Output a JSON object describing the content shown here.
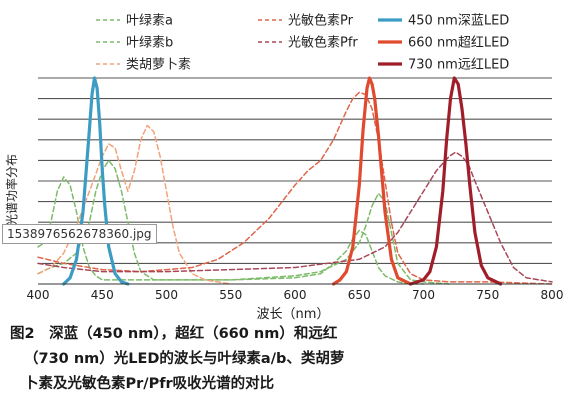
{
  "filename_tag": "1538976562678360.jpg",
  "caption": {
    "line1": "图2　深蓝（450 nm），超红（660 nm）和远红",
    "line2": "（730 nm）光LED的波长与叶绿素a/b、类胡萝",
    "line3": "卜素及光敏色素Pr/Pfr吸收光谱的对比"
  },
  "colors": {
    "chl_a": "#7dbb6b",
    "chl_b": "#7dbb6b",
    "carotenoid": "#f0a37a",
    "pr": "#e0654a",
    "pfr": "#a8475a",
    "led450": "#3d9cc4",
    "led660": "#e04a2e",
    "led730": "#a01e2a",
    "gridline": "#555555"
  },
  "chart_data": {
    "type": "line",
    "title": "",
    "xlabel": "波长（nm）",
    "ylabel": "光谱功率分布",
    "xlim": [
      400,
      800
    ],
    "ylim": [
      0,
      1
    ],
    "x_ticks": [
      400,
      450,
      500,
      550,
      600,
      650,
      700,
      750,
      800
    ],
    "grid": "horizontal",
    "legend_position": "top",
    "series": [
      {
        "key": "chl_a",
        "name": "叶绿素a",
        "style": "dashed",
        "x": [
          400,
          405,
          410,
          415,
          420,
          425,
          430,
          435,
          440,
          445,
          450,
          455,
          460,
          465,
          470,
          480,
          500,
          550,
          600,
          620,
          640,
          650,
          655,
          660,
          665,
          670,
          675,
          680,
          690,
          700,
          720
        ],
        "y": [
          0.18,
          0.2,
          0.3,
          0.45,
          0.52,
          0.48,
          0.35,
          0.18,
          0.08,
          0.04,
          0.02,
          0.02,
          0.02,
          0.02,
          0.02,
          0.02,
          0.02,
          0.02,
          0.04,
          0.06,
          0.12,
          0.2,
          0.28,
          0.38,
          0.44,
          0.4,
          0.25,
          0.1,
          0.02,
          0.01,
          0.0
        ]
      },
      {
        "key": "chl_b",
        "name": "叶绿素b",
        "style": "dashed",
        "x": [
          400,
          410,
          420,
          430,
          440,
          445,
          450,
          455,
          460,
          465,
          470,
          475,
          480,
          490,
          500,
          550,
          600,
          620,
          630,
          640,
          645,
          650,
          655,
          660,
          665,
          670,
          680,
          690,
          700
        ],
        "y": [
          0.05,
          0.08,
          0.1,
          0.15,
          0.3,
          0.45,
          0.55,
          0.6,
          0.56,
          0.45,
          0.3,
          0.15,
          0.06,
          0.02,
          0.02,
          0.02,
          0.03,
          0.05,
          0.1,
          0.16,
          0.22,
          0.26,
          0.24,
          0.16,
          0.08,
          0.04,
          0.01,
          0.0,
          0.0
        ]
      },
      {
        "key": "carotenoid",
        "name": "类胡萝卜素",
        "style": "dashed",
        "x": [
          400,
          410,
          420,
          430,
          440,
          450,
          455,
          460,
          465,
          470,
          475,
          480,
          485,
          490,
          495,
          500,
          505,
          510,
          520,
          530,
          550
        ],
        "y": [
          0.05,
          0.08,
          0.15,
          0.28,
          0.45,
          0.62,
          0.68,
          0.66,
          0.55,
          0.45,
          0.55,
          0.7,
          0.77,
          0.74,
          0.62,
          0.45,
          0.28,
          0.15,
          0.05,
          0.02,
          0.0
        ]
      },
      {
        "key": "pr",
        "name": "光敏色素Pr",
        "style": "dashed",
        "x": [
          400,
          420,
          450,
          480,
          500,
          520,
          540,
          560,
          580,
          600,
          610,
          620,
          630,
          640,
          645,
          650,
          655,
          660,
          665,
          670,
          675,
          680,
          690,
          700,
          720,
          750,
          800
        ],
        "y": [
          0.13,
          0.1,
          0.07,
          0.06,
          0.07,
          0.08,
          0.12,
          0.2,
          0.32,
          0.48,
          0.55,
          0.6,
          0.7,
          0.84,
          0.9,
          0.93,
          0.92,
          0.85,
          0.7,
          0.5,
          0.3,
          0.15,
          0.05,
          0.02,
          0.01,
          0.01,
          0.0
        ]
      },
      {
        "key": "pfr",
        "name": "光敏色素Pfr",
        "style": "dashed",
        "x": [
          400,
          420,
          450,
          500,
          550,
          600,
          650,
          670,
          680,
          690,
          700,
          710,
          720,
          725,
          730,
          735,
          740,
          750,
          760,
          770,
          780,
          800
        ],
        "y": [
          0.1,
          0.08,
          0.06,
          0.06,
          0.07,
          0.08,
          0.12,
          0.18,
          0.25,
          0.35,
          0.45,
          0.55,
          0.62,
          0.64,
          0.62,
          0.58,
          0.5,
          0.35,
          0.2,
          0.08,
          0.03,
          0.01
        ]
      },
      {
        "key": "led450",
        "name": "450 nm深蓝LED",
        "style": "solid",
        "x": [
          420,
          425,
          430,
          435,
          440,
          442,
          444,
          446,
          448,
          450,
          452,
          455,
          460,
          465,
          470
        ],
        "y": [
          0.0,
          0.03,
          0.12,
          0.35,
          0.75,
          0.92,
          1.0,
          0.95,
          0.78,
          0.55,
          0.38,
          0.18,
          0.05,
          0.01,
          0.0
        ]
      },
      {
        "key": "led660",
        "name": "660 nm超红LED",
        "style": "solid",
        "x": [
          630,
          635,
          640,
          645,
          650,
          653,
          656,
          658,
          660,
          662,
          665,
          668,
          670,
          675,
          680,
          690
        ],
        "y": [
          0.0,
          0.02,
          0.06,
          0.18,
          0.48,
          0.75,
          0.95,
          1.0,
          0.97,
          0.9,
          0.72,
          0.5,
          0.35,
          0.12,
          0.03,
          0.0
        ]
      },
      {
        "key": "led730",
        "name": "730 nm远红LED",
        "style": "solid",
        "x": [
          690,
          700,
          705,
          710,
          715,
          718,
          721,
          724,
          727,
          730,
          733,
          736,
          740,
          745,
          750,
          760
        ],
        "y": [
          0.0,
          0.02,
          0.06,
          0.18,
          0.45,
          0.7,
          0.9,
          1.0,
          0.97,
          0.85,
          0.68,
          0.48,
          0.25,
          0.09,
          0.03,
          0.0
        ]
      }
    ]
  }
}
